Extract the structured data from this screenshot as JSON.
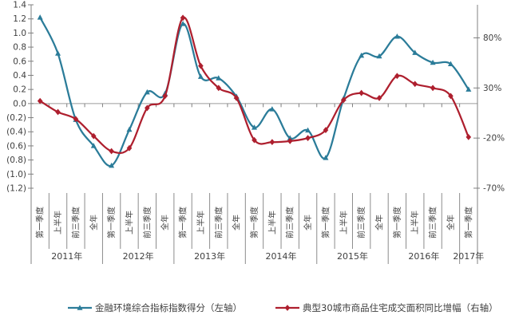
{
  "chart_data": {
    "type": "line",
    "title": "",
    "legend_position": "bottom",
    "grid": "zero-line-only",
    "categories": [
      "第一季度",
      "上半年",
      "前三季度",
      "全年",
      "第一季度",
      "上半年",
      "前三季度",
      "全年",
      "第一季度",
      "上半年",
      "前三季度",
      "全年",
      "第一季度",
      "上半年",
      "前三季度",
      "全年",
      "第一季度",
      "上半年",
      "前三季度",
      "全年",
      "第一季度",
      "上半年",
      "前三季度",
      "全年",
      "第一季度"
    ],
    "year_groups": [
      {
        "label": "2011年",
        "count": 4
      },
      {
        "label": "2012年",
        "count": 4
      },
      {
        "label": "2013年",
        "count": 4
      },
      {
        "label": "2014年",
        "count": 4
      },
      {
        "label": "2015年",
        "count": 4
      },
      {
        "label": "2016年",
        "count": 4
      },
      {
        "label": "2017年",
        "count": 1
      }
    ],
    "left_axis": {
      "min": -1.2,
      "max": 1.4,
      "step": 0.2,
      "tick_labels": [
        "1.4",
        "1.2",
        "1.0",
        "0.8",
        "0.6",
        "0.4",
        "0.2",
        "0.0",
        "(0.2)",
        "(0.4)",
        "(0.6)",
        "(0.8)",
        "(1.0)",
        "(1.2)"
      ]
    },
    "right_axis": {
      "tick_labels": [
        "80%",
        "30%",
        "-20%",
        "-70%"
      ],
      "tick_values": [
        80,
        30,
        -20,
        -70
      ],
      "unit": "percent"
    },
    "series": [
      {
        "name": "金融环境综合指标指数得分（左轴）",
        "axis": "left",
        "marker": "triangle",
        "color": "#2B7C99",
        "values": [
          1.22,
          0.71,
          -0.23,
          -0.6,
          -0.88,
          -0.37,
          0.16,
          0.14,
          1.13,
          0.38,
          0.36,
          0.1,
          -0.34,
          -0.08,
          -0.49,
          -0.38,
          -0.77,
          0.07,
          0.68,
          0.67,
          0.95,
          0.72,
          0.58,
          0.56,
          0.2
        ]
      },
      {
        "name": "典型30城市商品住宅成交面积同比增幅（右轴）",
        "axis": "right",
        "marker": "diamond",
        "color": "#AE1F2E",
        "values": [
          17,
          6,
          -1,
          -18,
          -33,
          -30,
          10,
          22,
          100,
          52,
          30,
          20,
          -22,
          -24,
          -23,
          -20,
          -12,
          18,
          25,
          20,
          42,
          34,
          30,
          22,
          -19
        ]
      }
    ]
  }
}
